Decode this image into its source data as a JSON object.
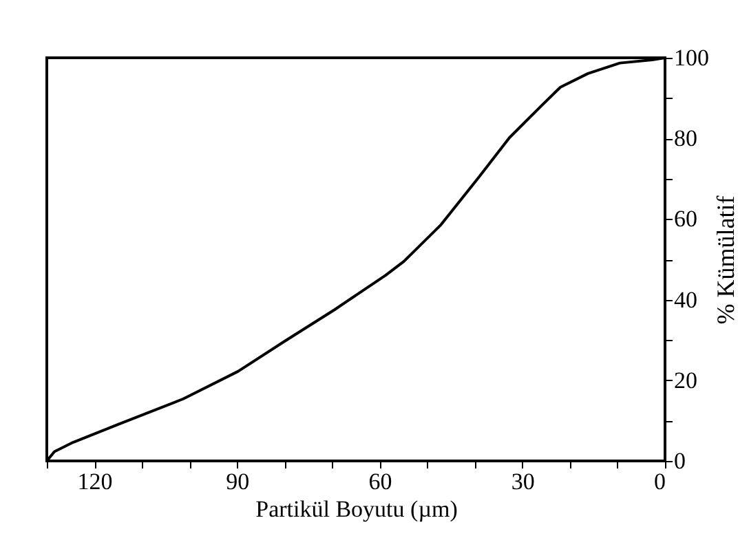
{
  "chart_data": {
    "type": "line",
    "xlabel": "Partikül Boyutu (µm)",
    "ylabel": "% Kümülatif",
    "x": [
      130,
      128.4,
      124.5,
      114.9,
      101.3,
      89.8,
      80.1,
      69.5,
      64.5,
      58.8,
      54.9,
      47.1,
      39.4,
      32.7,
      25.9,
      22.0,
      16.2,
      9.5,
      2.7,
      0
    ],
    "series": [
      {
        "color": "#000000",
        "values": [
          0,
          2.3,
          4.6,
          9.1,
          15.4,
          22.2,
          29.6,
          37.5,
          41.5,
          46,
          49.5,
          58.6,
          70,
          80.2,
          88.2,
          92.7,
          96.1,
          98.7,
          99.5,
          100
        ]
      }
    ],
    "xlim": [
      130,
      0
    ],
    "xticks": [
      {
        "value": 130,
        "label": null
      },
      120,
      {
        "value": 110,
        "label": null
      },
      {
        "value": 100,
        "label": null
      },
      90,
      {
        "value": 80,
        "label": null
      },
      {
        "value": 70,
        "label": null
      },
      60,
      {
        "value": 50,
        "label": null
      },
      {
        "value": 40,
        "label": null
      },
      30,
      {
        "value": 20,
        "label": null
      },
      {
        "value": 10,
        "label": null
      },
      0
    ],
    "ylim": [
      0,
      100
    ],
    "yticks": [
      0,
      {
        "value": 10,
        "label": null
      },
      20,
      {
        "value": 30,
        "label": null
      },
      40,
      {
        "value": 50,
        "label": null
      },
      60,
      {
        "value": 70,
        "label": null
      },
      80,
      {
        "value": 90,
        "label": null
      },
      100
    ],
    "grid": false,
    "marker": "none",
    "line_style": "solid"
  }
}
